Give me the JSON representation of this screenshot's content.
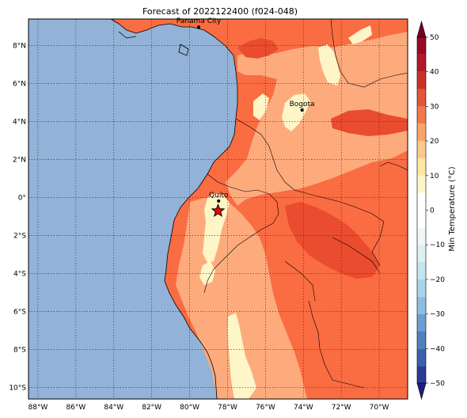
{
  "title": "Forecast of 2022122400 (f024-048)",
  "cities": [
    {
      "name": "Panama City",
      "lon": -79.52,
      "lat": 8.98
    },
    {
      "name": "Bogota",
      "lon": -74.07,
      "lat": 4.61
    },
    {
      "name": "Quito",
      "lon": -78.47,
      "lat": -0.18
    }
  ],
  "marker": {
    "label": "star",
    "lon": -78.5,
    "lat": -0.7,
    "color": "#ff0000"
  },
  "axes": {
    "lon_range": [
      -88.5,
      -68.5
    ],
    "lat_range": [
      -10.6,
      9.4
    ],
    "lon_ticks": [
      {
        "value": -88,
        "label": "88°W"
      },
      {
        "value": -86,
        "label": "86°W"
      },
      {
        "value": -84,
        "label": "84°W"
      },
      {
        "value": -82,
        "label": "82°W"
      },
      {
        "value": -80,
        "label": "80°W"
      },
      {
        "value": -78,
        "label": "78°W"
      },
      {
        "value": -76,
        "label": "76°W"
      },
      {
        "value": -74,
        "label": "74°W"
      },
      {
        "value": -72,
        "label": "72°W"
      },
      {
        "value": -70,
        "label": "70°W"
      }
    ],
    "lat_ticks": [
      {
        "value": 8,
        "label": "8°N"
      },
      {
        "value": 6,
        "label": "6°N"
      },
      {
        "value": 4,
        "label": "4°N"
      },
      {
        "value": 2,
        "label": "2°N"
      },
      {
        "value": 0,
        "label": "0°"
      },
      {
        "value": -2,
        "label": "2°S"
      },
      {
        "value": -4,
        "label": "4°S"
      },
      {
        "value": -6,
        "label": "6°S"
      },
      {
        "value": -8,
        "label": "8°S"
      },
      {
        "value": -10,
        "label": "10°S"
      }
    ]
  },
  "colorbar": {
    "label": "Min Temperature (°C)",
    "min": -55,
    "max": 55,
    "levels": [
      -55,
      -50,
      -45,
      -40,
      -35,
      -30,
      -25,
      -20,
      -15,
      -10,
      -5,
      0,
      5,
      10,
      15,
      20,
      25,
      30,
      35,
      40,
      45,
      50,
      55
    ],
    "colors": [
      "#1f1f80",
      "#2a3a96",
      "#3a5fad",
      "#4e7fbf",
      "#6b9fd0",
      "#8fbde0",
      "#a9d3e8",
      "#c4e4ef",
      "#dceff3",
      "#eef8f7",
      "#ffffff",
      "#ffffff",
      "#fff6c8",
      "#ffe7a0",
      "#fdc98a",
      "#f9a36a",
      "#ef7a4a",
      "#e25538",
      "#cc3128",
      "#b51726",
      "#9a0a26",
      "#7a0020"
    ],
    "ticks": [
      {
        "value": 50,
        "label": "50"
      },
      {
        "value": 40,
        "label": "40"
      },
      {
        "value": 30,
        "label": "30"
      },
      {
        "value": 20,
        "label": "20"
      },
      {
        "value": 10,
        "label": "10"
      },
      {
        "value": 0,
        "label": "0"
      },
      {
        "value": -10,
        "label": "−10"
      },
      {
        "value": -20,
        "label": "−20"
      },
      {
        "value": -30,
        "label": "−30"
      },
      {
        "value": -40,
        "label": "−40"
      },
      {
        "value": -50,
        "label": "−50"
      }
    ]
  },
  "colors": {
    "ocean": "#92b3d7",
    "temp_10_15": "#fff6c8",
    "temp_15_20": "#fdab7d",
    "temp_20_25": "#fa6c42",
    "temp_25_30": "#e94c2f",
    "gridline": "#333333"
  }
}
